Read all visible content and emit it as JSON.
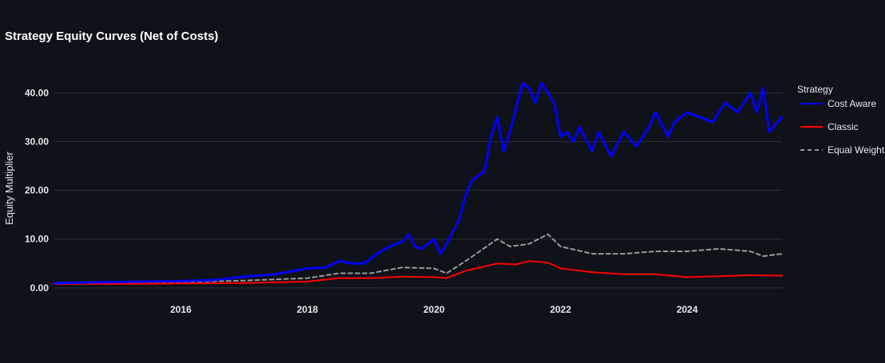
{
  "chart_data": {
    "type": "line",
    "title": "Strategy Equity Curves (Net of Costs)",
    "xlabel": "",
    "ylabel": "Equity Multiplier",
    "xlim": [
      2014.0,
      2025.5
    ],
    "ylim": [
      -1.5,
      43.5
    ],
    "x_ticks": [
      2016,
      2018,
      2020,
      2022,
      2024
    ],
    "x_tick_labels": [
      "2016",
      "2018",
      "2020",
      "2022",
      "2024"
    ],
    "y_ticks": [
      0,
      10,
      20,
      30,
      40
    ],
    "y_tick_labels": [
      "0.00",
      "10.00",
      "20.00",
      "30.00",
      "40.00"
    ],
    "grid": true,
    "legend_title": "Strategy",
    "legend_placement": "right",
    "colors": {
      "background": "#0f1219",
      "grid": "#2a2f3a",
      "text": "#e6e8ec"
    },
    "series": [
      {
        "name": "Cost Aware",
        "color": "#0000ff",
        "dash": "solid",
        "x": [
          2014.0,
          2014.5,
          2015.0,
          2015.5,
          2016.0,
          2016.5,
          2016.8,
          2017.0,
          2017.5,
          2017.8,
          2018.0,
          2018.3,
          2018.5,
          2018.7,
          2018.9,
          2019.1,
          2019.3,
          2019.5,
          2019.6,
          2019.7,
          2019.8,
          2020.0,
          2020.1,
          2020.2,
          2020.4,
          2020.5,
          2020.6,
          2020.8,
          2020.9,
          2021.0,
          2021.1,
          2021.2,
          2021.3,
          2021.4,
          2021.5,
          2021.6,
          2021.7,
          2021.8,
          2021.9,
          2022.0,
          2022.1,
          2022.2,
          2022.3,
          2022.5,
          2022.6,
          2022.8,
          2023.0,
          2023.2,
          2023.4,
          2023.5,
          2023.7,
          2023.8,
          2024.0,
          2024.2,
          2024.4,
          2024.6,
          2024.8,
          2025.0,
          2025.1,
          2025.2,
          2025.3,
          2025.5
        ],
        "y": [
          1.0,
          1.1,
          1.2,
          1.3,
          1.4,
          1.6,
          2.0,
          2.3,
          2.8,
          3.5,
          4.0,
          4.2,
          5.5,
          5.0,
          5.0,
          7.0,
          8.5,
          9.5,
          11.0,
          8.5,
          8.0,
          10.0,
          7.0,
          9.0,
          14.0,
          19.0,
          22.0,
          24.0,
          31.0,
          35.0,
          28.0,
          32.0,
          37.0,
          42.0,
          41.0,
          38.0,
          42.0,
          40.0,
          38.0,
          31.0,
          32.0,
          30.0,
          33.0,
          28.0,
          32.0,
          27.0,
          32.0,
          29.0,
          33.0,
          36.0,
          31.0,
          34.0,
          36.0,
          35.0,
          34.0,
          38.0,
          36.0,
          40.0,
          36.0,
          41.0,
          32.0,
          35.0
        ]
      },
      {
        "name": "Classic",
        "color": "#ff0000",
        "dash": "solid",
        "x": [
          2014.0,
          2015.0,
          2016.0,
          2017.0,
          2018.0,
          2018.5,
          2019.0,
          2019.5,
          2020.0,
          2020.2,
          2020.5,
          2021.0,
          2021.3,
          2021.5,
          2021.8,
          2022.0,
          2022.5,
          2023.0,
          2023.5,
          2024.0,
          2024.5,
          2025.0,
          2025.5
        ],
        "y": [
          0.8,
          0.8,
          0.9,
          1.0,
          1.3,
          2.0,
          2.0,
          2.3,
          2.2,
          2.0,
          3.5,
          5.0,
          4.8,
          5.5,
          5.2,
          4.0,
          3.2,
          2.8,
          2.8,
          2.2,
          2.4,
          2.6,
          2.5
        ]
      },
      {
        "name": "Equal Weight",
        "color": "#9a9a9a",
        "dash": "dash",
        "x": [
          2014.0,
          2015.0,
          2016.0,
          2017.0,
          2018.0,
          2018.5,
          2019.0,
          2019.5,
          2020.0,
          2020.2,
          2020.5,
          2021.0,
          2021.2,
          2021.5,
          2021.8,
          2022.0,
          2022.5,
          2023.0,
          2023.5,
          2024.0,
          2024.5,
          2025.0,
          2025.2,
          2025.5
        ],
        "y": [
          1.0,
          1.0,
          1.2,
          1.5,
          2.0,
          3.0,
          3.0,
          4.2,
          4.0,
          3.0,
          5.5,
          10.0,
          8.5,
          9.0,
          11.0,
          8.5,
          7.0,
          7.0,
          7.5,
          7.5,
          8.0,
          7.5,
          6.5,
          7.0
        ]
      }
    ]
  }
}
